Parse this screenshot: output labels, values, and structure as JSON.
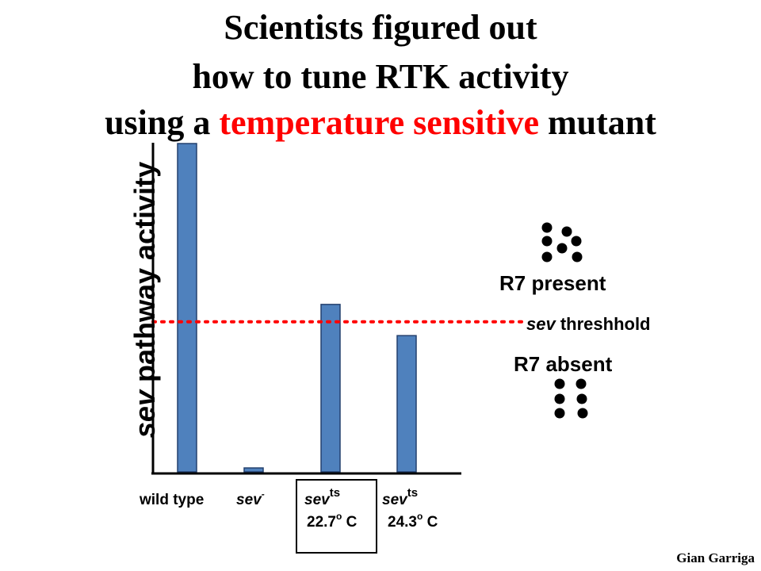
{
  "title": {
    "line1": "Scientists figured out",
    "line2": "how to tune RTK activity",
    "line3_before": "using a ",
    "line3_highlight": "temperature sensitive",
    "line3_after": " mutant"
  },
  "y_axis_label": {
    "italic_part": "sev",
    "rest": " pathway activity"
  },
  "x_labels": {
    "wild_type": "wild type",
    "sev_minus_base": "sev",
    "sev_minus_sup": "-",
    "sevts1_base": "sev",
    "sevts1_sup": "ts",
    "sevts1_temp": "22.7",
    "sevts2_base": "sev",
    "sevts2_sup": "ts",
    "sevts2_temp": "24.3",
    "temp_sup": "o",
    "temp_unit": " C"
  },
  "annotations": {
    "r7_present": "R7 present",
    "r7_absent": "R7 absent",
    "threshold_italic": "sev",
    "threshold_rest": " threshhold"
  },
  "credit": "Gian Garriga",
  "colors": {
    "bar": "#4f81bd",
    "bar_border": "#24406e",
    "threshold": "#ff0000",
    "title_highlight": "#ff0000"
  },
  "chart_data": {
    "type": "bar",
    "categories": [
      "wild type",
      "sev-",
      "sev ts 22.7o C",
      "sev ts 24.3o C"
    ],
    "values": [
      100,
      1.2,
      51,
      41.5
    ],
    "threshold": 45.7,
    "ylim": [
      0,
      100
    ]
  }
}
